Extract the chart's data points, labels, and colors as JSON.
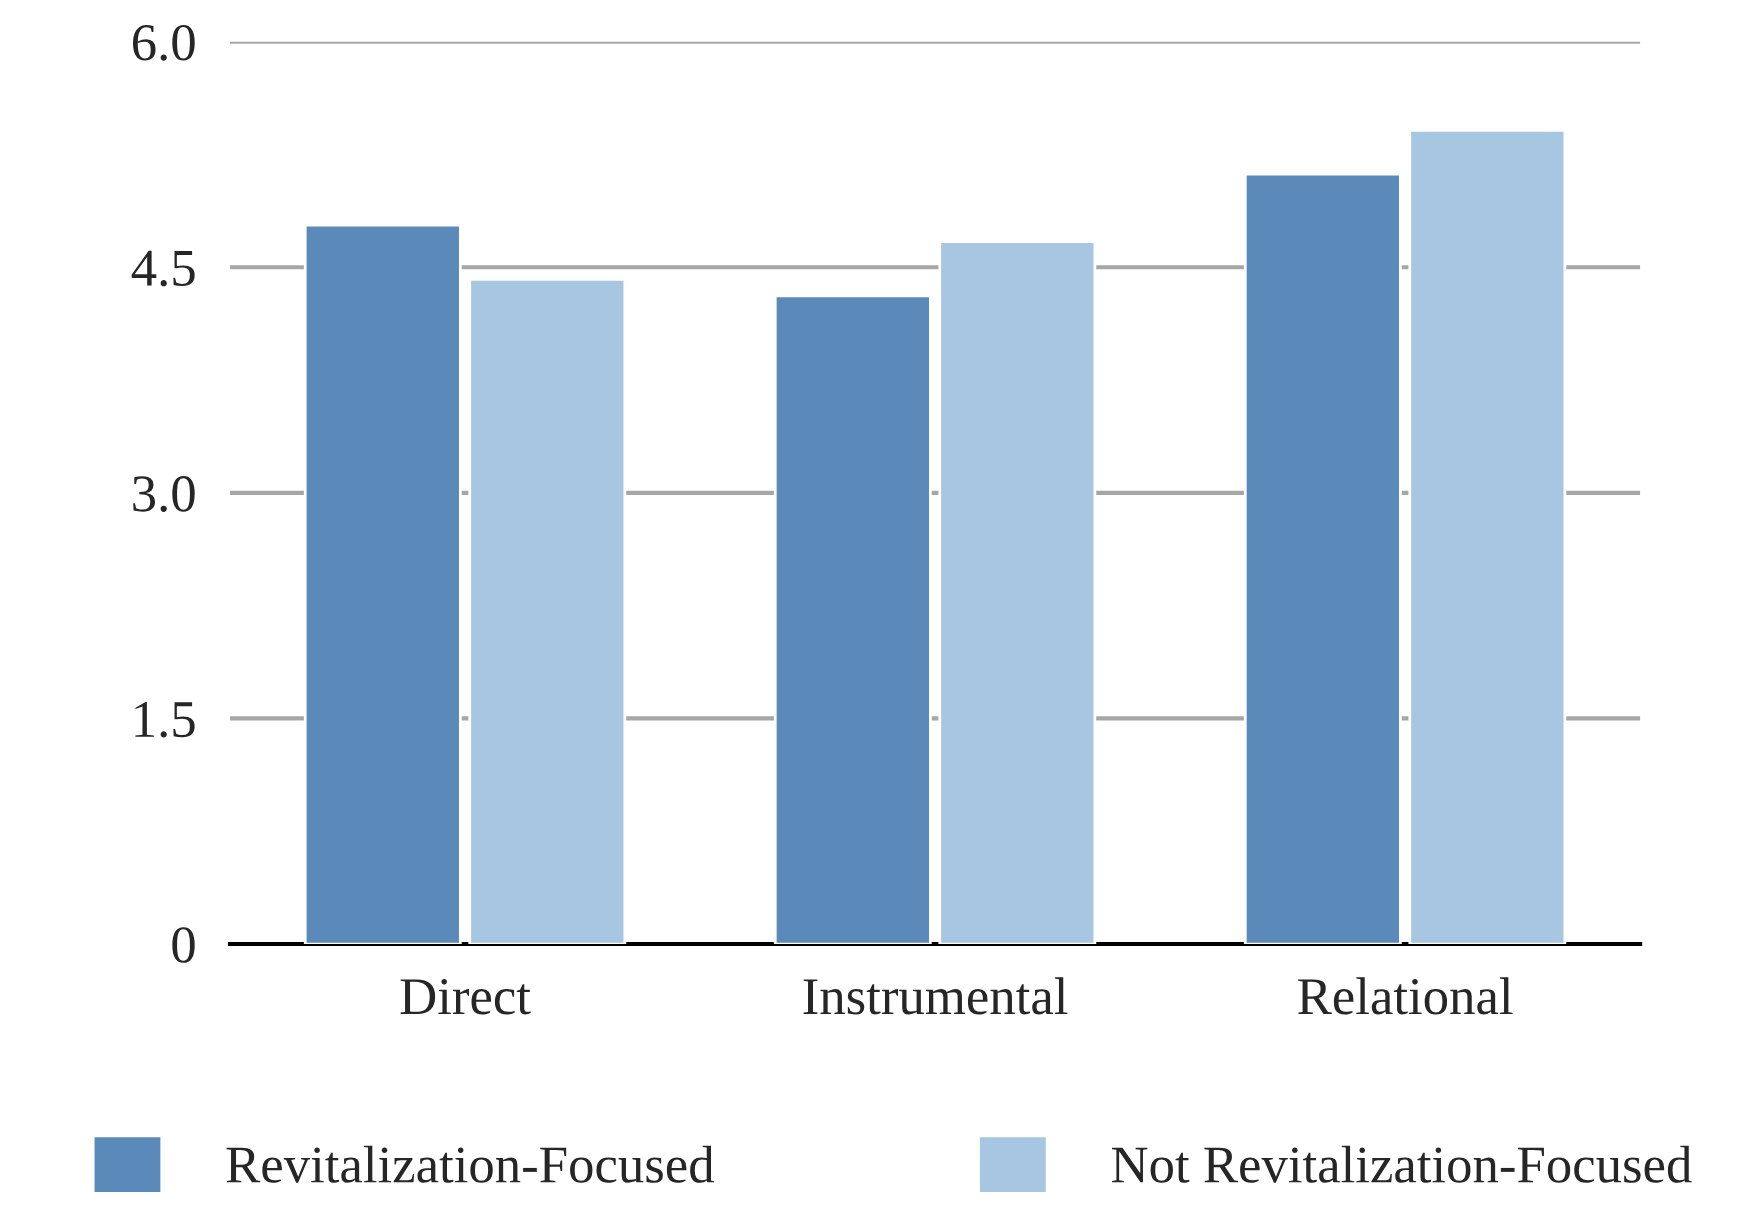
{
  "chart_data": {
    "type": "bar",
    "categories": [
      "Direct",
      "Instrumental",
      "Relational"
    ],
    "series": [
      {
        "name": "Revitalization-Focused",
        "color": "#5b89ba",
        "values": [
          4.78,
          4.31,
          5.12
        ]
      },
      {
        "name": "Not Revitalization-Focused",
        "color": "#a6c6e1",
        "values": [
          4.42,
          4.67,
          5.41
        ]
      }
    ],
    "ylim": [
      0,
      6
    ],
    "yticks": [
      {
        "value": 0,
        "label": "0"
      },
      {
        "value": 1.5,
        "label": "1.5"
      },
      {
        "value": 3,
        "label": "3.0"
      },
      {
        "value": 4.5,
        "label": "4.5"
      },
      {
        "value": 6,
        "label": "6.0"
      }
    ],
    "grid": "y",
    "legend": "bottom"
  }
}
